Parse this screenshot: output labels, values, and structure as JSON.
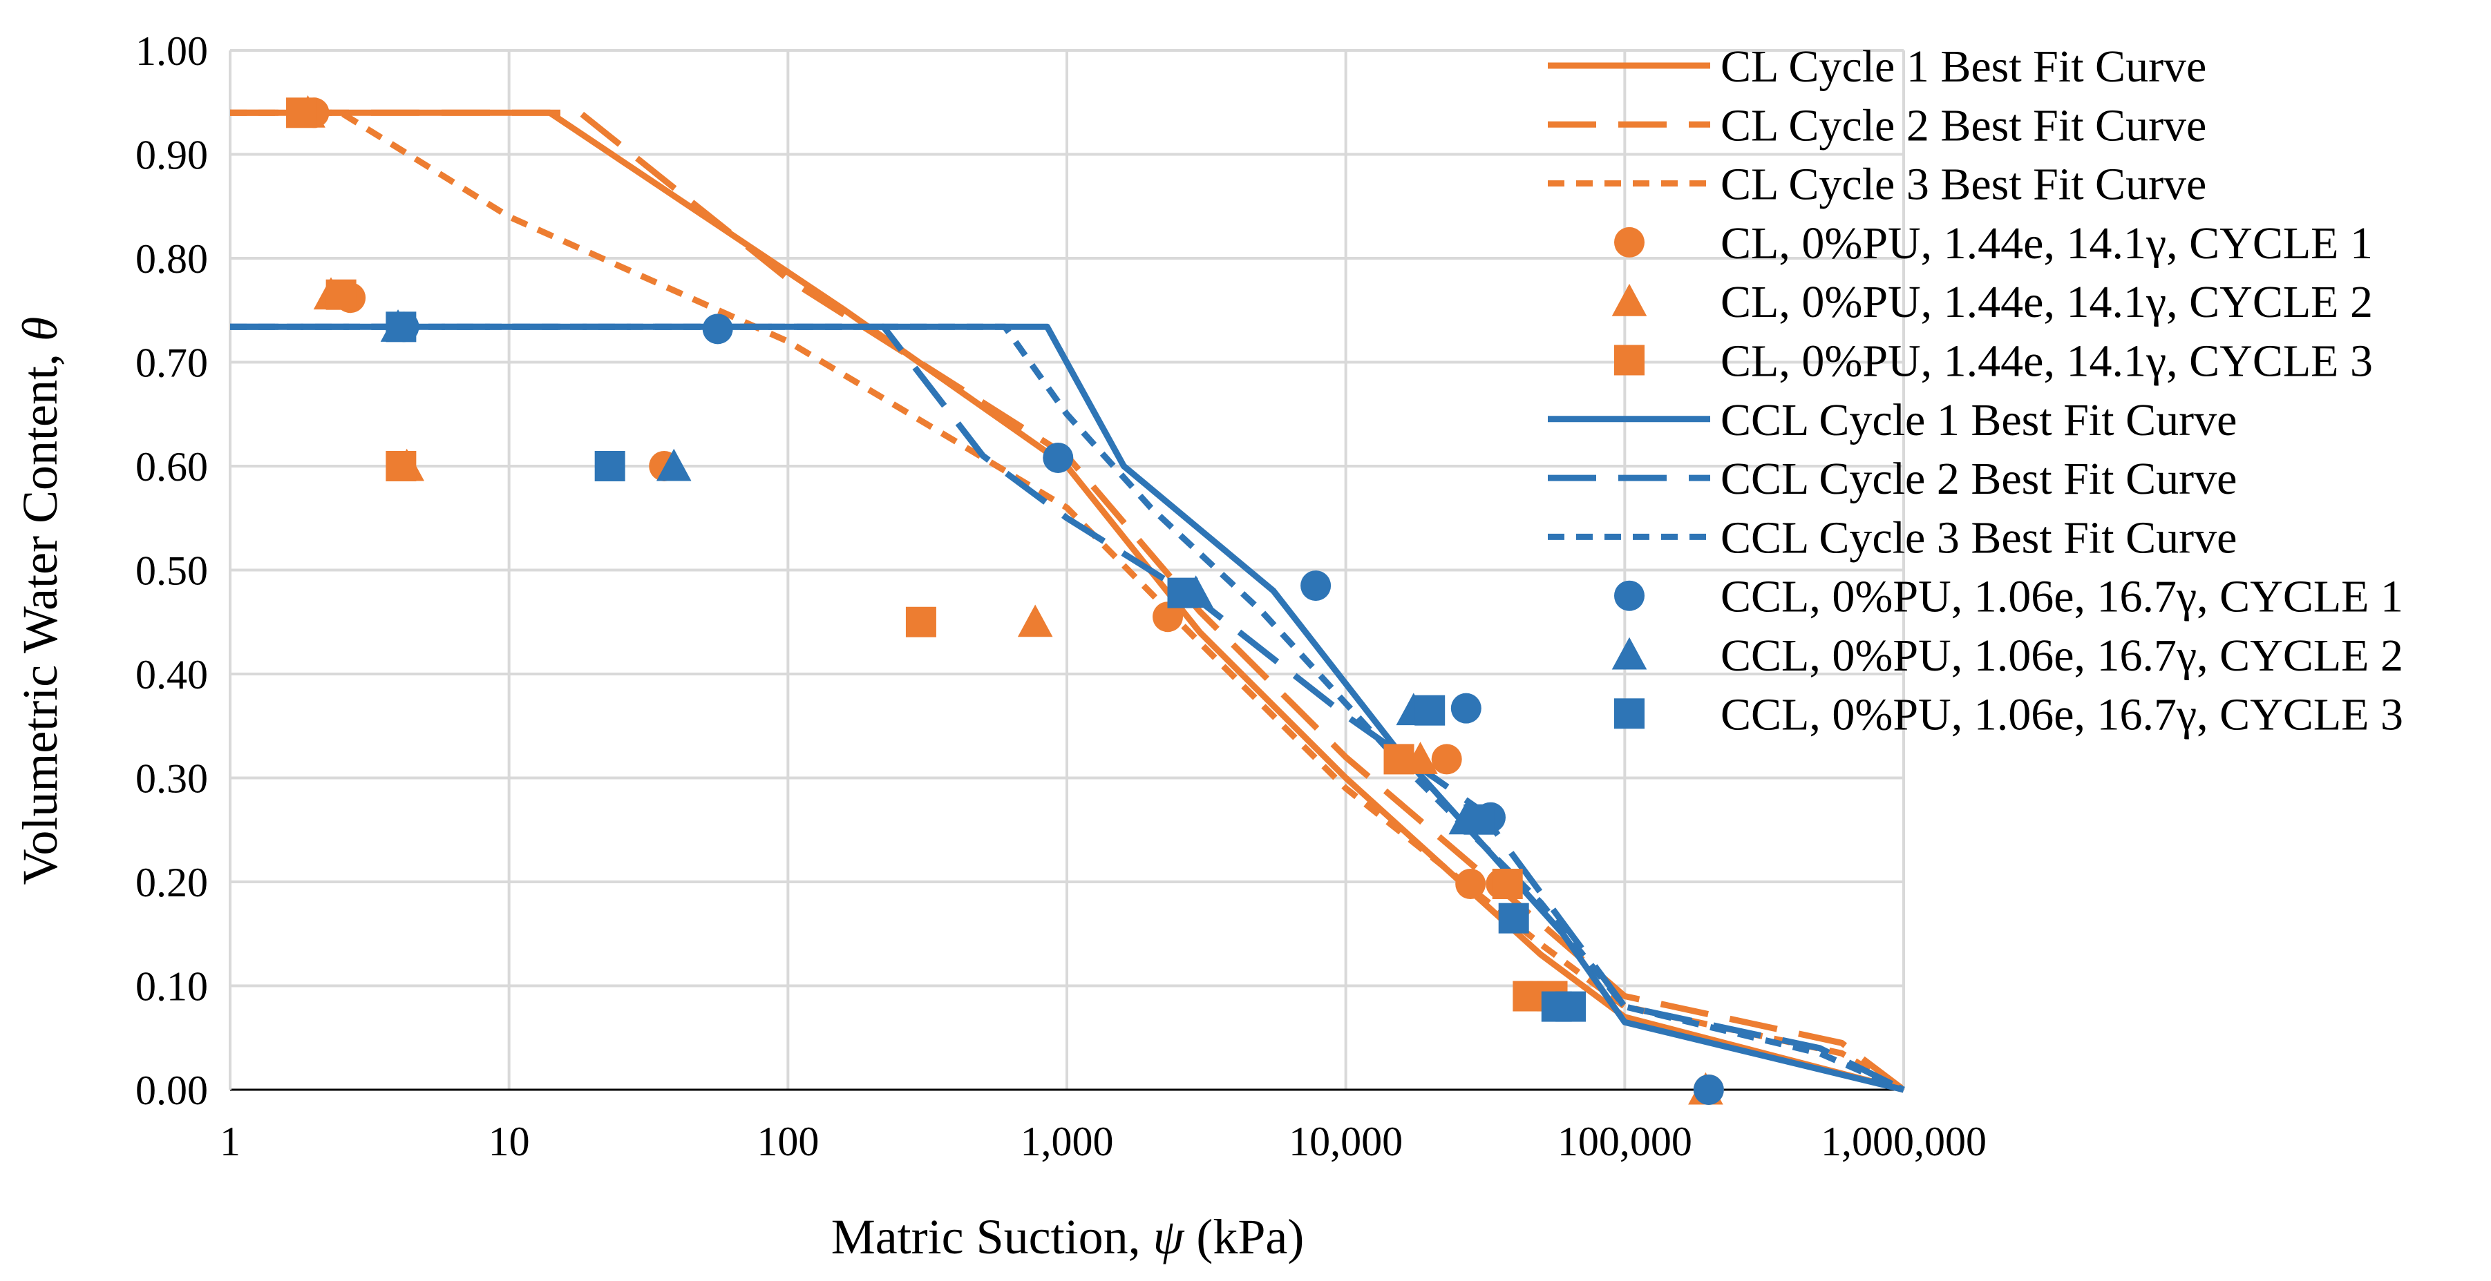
{
  "colors": {
    "cl": "#ED7D31",
    "ccl": "#2E75B6",
    "grid": "#D9D9D9",
    "axis": "#000000"
  },
  "chart_data": {
    "type": "scatter",
    "title": "",
    "xlabel_main": "Matric Suction, ",
    "xlabel_symbol": "ψ",
    "xlabel_unit": " (kPa)",
    "ylabel_main": "Volumetric Water Content, ",
    "ylabel_symbol": "θ",
    "xscale": "log",
    "xlim": [
      1,
      1000000
    ],
    "ylim": [
      0,
      1
    ],
    "grid": true,
    "legend_position": "right",
    "xticks": [
      {
        "value": 1,
        "label": "1"
      },
      {
        "value": 10,
        "label": "10"
      },
      {
        "value": 100,
        "label": "100"
      },
      {
        "value": 1000,
        "label": "1,000"
      },
      {
        "value": 10000,
        "label": "10,000"
      },
      {
        "value": 100000,
        "label": "100,000"
      },
      {
        "value": 1000000,
        "label": "1,000,000"
      }
    ],
    "yticks": [
      {
        "value": 0,
        "label": "0.00"
      },
      {
        "value": 0.1,
        "label": "0.10"
      },
      {
        "value": 0.2,
        "label": "0.20"
      },
      {
        "value": 0.3,
        "label": "0.30"
      },
      {
        "value": 0.4,
        "label": "0.40"
      },
      {
        "value": 0.5,
        "label": "0.50"
      },
      {
        "value": 0.6,
        "label": "0.60"
      },
      {
        "value": 0.7,
        "label": "0.70"
      },
      {
        "value": 0.8,
        "label": "0.80"
      },
      {
        "value": 0.9,
        "label": "0.90"
      },
      {
        "value": 1,
        "label": "1.00"
      }
    ],
    "series": [
      {
        "name": "CL Cycle 1 Best Fit Curve",
        "kind": "line",
        "color": "cl",
        "dash": "solid",
        "x": [
          1,
          14,
          160,
          1000,
          3000,
          10000,
          50000,
          100000,
          1000000
        ],
        "y": [
          0.94,
          0.94,
          0.75,
          0.6,
          0.44,
          0.3,
          0.13,
          0.07,
          0.0
        ]
      },
      {
        "name": "CL Cycle 2 Best Fit Curve",
        "kind": "line",
        "color": "cl",
        "dash": "long",
        "x": [
          1,
          18,
          100,
          1000,
          3000,
          10000,
          50000,
          100000,
          600000,
          1000000
        ],
        "y": [
          0.94,
          0.94,
          0.78,
          0.61,
          0.46,
          0.32,
          0.16,
          0.09,
          0.045,
          0.0
        ]
      },
      {
        "name": "CL Cycle 3 Best Fit Curve",
        "kind": "line",
        "color": "cl",
        "dash": "short",
        "x": [
          1,
          2.5,
          10,
          100,
          1000,
          3000,
          10000,
          50000,
          100000,
          600000,
          1000000
        ],
        "y": [
          0.94,
          0.94,
          0.84,
          0.72,
          0.56,
          0.43,
          0.29,
          0.14,
          0.08,
          0.035,
          0.0
        ]
      },
      {
        "name": "CL, 0%PU, 1.44e, 14.1γ, CYCLE 1",
        "kind": "marker",
        "marker": "circle",
        "color": "cl",
        "x": [
          2.0,
          2.7,
          36,
          2300,
          23000,
          28000,
          36000,
          46000,
          200000
        ],
        "y": [
          0.94,
          0.762,
          0.6,
          0.455,
          0.318,
          0.198,
          0.198,
          0.09,
          0.0
        ]
      },
      {
        "name": "CL, 0%PU, 1.44e, 14.1γ, CYCLE 2",
        "kind": "marker",
        "marker": "triangle",
        "color": "cl",
        "x": [
          1.9,
          2.3,
          4.3,
          770,
          18500,
          195000
        ],
        "y": [
          0.94,
          0.765,
          0.6,
          0.45,
          0.318,
          0.0
        ]
      },
      {
        "name": "CL, 0%PU, 1.44e, 14.1γ, CYCLE 3",
        "kind": "marker",
        "marker": "square",
        "color": "cl",
        "x": [
          1.8,
          2.5,
          4.1,
          300,
          15500,
          38000,
          45000,
          55000
        ],
        "y": [
          0.94,
          0.765,
          0.6,
          0.45,
          0.318,
          0.198,
          0.09,
          0.09
        ]
      },
      {
        "name": "CCL Cycle 1 Best Fit Curve",
        "kind": "line",
        "color": "ccl",
        "dash": "solid",
        "x": [
          1,
          850,
          1600,
          5500,
          15000,
          60000,
          100000,
          1000000
        ],
        "y": [
          0.734,
          0.734,
          0.6,
          0.48,
          0.33,
          0.15,
          0.065,
          0.0
        ]
      },
      {
        "name": "CCL Cycle 2 Best Fit Curve",
        "kind": "line",
        "color": "ccl",
        "dash": "long",
        "x": [
          1,
          220,
          500,
          1000,
          3000,
          10000,
          30000,
          100000,
          500000,
          1000000
        ],
        "y": [
          0.734,
          0.734,
          0.61,
          0.55,
          0.47,
          0.36,
          0.27,
          0.08,
          0.04,
          0.0
        ]
      },
      {
        "name": "CCL Cycle 3 Best Fit Curve",
        "kind": "line",
        "color": "ccl",
        "dash": "short",
        "x": [
          1,
          600,
          1000,
          2000,
          5000,
          15000,
          50000,
          100000,
          500000,
          1000000
        ],
        "y": [
          0.734,
          0.734,
          0.65,
          0.56,
          0.46,
          0.32,
          0.18,
          0.08,
          0.035,
          0.0
        ]
      },
      {
        "name": "CCL, 0%PU, 1.06e, 16.7γ, CYCLE 1",
        "kind": "marker",
        "marker": "circle",
        "color": "ccl",
        "x": [
          4.2,
          56,
          930,
          7800,
          27000,
          33000,
          200000
        ],
        "y": [
          0.734,
          0.732,
          0.608,
          0.485,
          0.367,
          0.262,
          0.0
        ]
      },
      {
        "name": "CCL, 0%PU, 1.06e, 16.7γ, CYCLE 2",
        "kind": "marker",
        "marker": "triangle",
        "color": "ccl",
        "x": [
          4.0,
          39,
          2900,
          17500,
          27000
        ],
        "y": [
          0.734,
          0.6,
          0.478,
          0.365,
          0.26
        ]
      },
      {
        "name": "CCL, 0%PU, 1.06e, 16.7γ, CYCLE 3",
        "kind": "marker",
        "marker": "square",
        "color": "ccl",
        "x": [
          4.1,
          23,
          2600,
          20000,
          30000,
          40000,
          57000,
          64000
        ],
        "y": [
          0.734,
          0.6,
          0.478,
          0.365,
          0.26,
          0.165,
          0.08,
          0.08
        ]
      }
    ]
  }
}
